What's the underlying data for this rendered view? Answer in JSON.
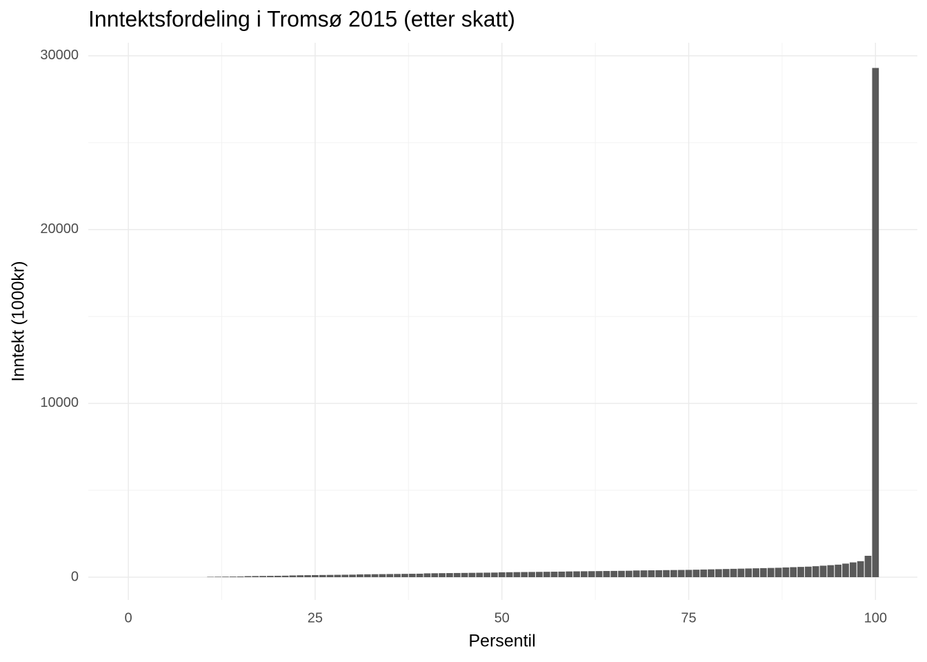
{
  "chart_data": {
    "type": "bar",
    "title": "Inntektsfordeling i Tromsø 2015 (etter skatt)",
    "x_label": "Persentil",
    "y_label": "Inntekt (1000kr)",
    "x": [
      11,
      12,
      13,
      14,
      15,
      16,
      17,
      18,
      19,
      20,
      21,
      22,
      23,
      24,
      25,
      26,
      27,
      28,
      29,
      30,
      31,
      32,
      33,
      34,
      35,
      36,
      37,
      38,
      39,
      40,
      41,
      42,
      43,
      44,
      45,
      46,
      47,
      48,
      49,
      50,
      51,
      52,
      53,
      54,
      55,
      56,
      57,
      58,
      59,
      60,
      61,
      62,
      63,
      64,
      65,
      66,
      67,
      68,
      69,
      70,
      71,
      72,
      73,
      74,
      75,
      76,
      77,
      78,
      79,
      80,
      81,
      82,
      83,
      84,
      85,
      86,
      87,
      88,
      89,
      90,
      91,
      92,
      93,
      94,
      95,
      96,
      97,
      98,
      99,
      100
    ],
    "values": [
      20,
      25,
      30,
      35,
      40,
      60,
      65,
      70,
      75,
      80,
      85,
      100,
      110,
      115,
      120,
      125,
      130,
      135,
      140,
      145,
      160,
      165,
      170,
      175,
      180,
      185,
      190,
      195,
      200,
      220,
      225,
      230,
      235,
      240,
      245,
      250,
      255,
      260,
      265,
      280,
      285,
      290,
      295,
      300,
      305,
      310,
      315,
      320,
      330,
      335,
      340,
      345,
      350,
      355,
      360,
      365,
      370,
      385,
      390,
      395,
      400,
      405,
      410,
      415,
      420,
      430,
      440,
      450,
      460,
      470,
      480,
      490,
      500,
      510,
      520,
      530,
      540,
      560,
      575,
      590,
      605,
      630,
      660,
      690,
      720,
      780,
      850,
      920,
      1230,
      29300
    ],
    "color": "#595959",
    "xlim": [
      -5.36,
      105.6
    ],
    "xticks": [
      0,
      25,
      50,
      75,
      100
    ],
    "ylim": [
      -1310,
      30750
    ],
    "yticks": [
      0,
      10000,
      20000,
      30000
    ],
    "grid": true
  }
}
